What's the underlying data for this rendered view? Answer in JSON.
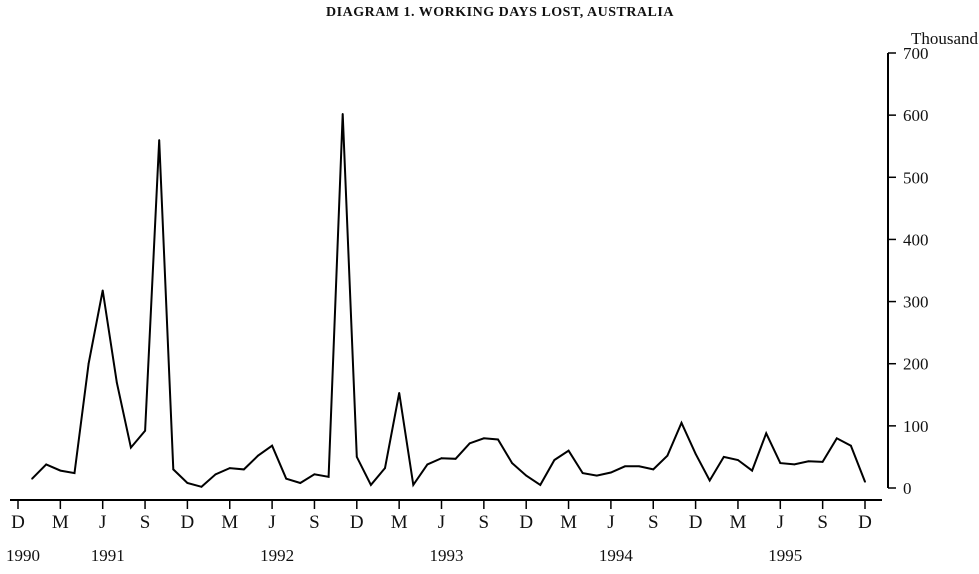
{
  "chart_data": {
    "type": "line",
    "title": "DIAGRAM 1. WORKING DAYS LOST, AUSTRALIA",
    "y_unit": "Thousand",
    "y_axis_side": "right",
    "ylim": [
      0,
      700
    ],
    "y_ticks": [
      0,
      100,
      200,
      300,
      400,
      500,
      600,
      700
    ],
    "grid": false,
    "x_tick_labels": [
      "D",
      "M",
      "J",
      "S",
      "D",
      "M",
      "J",
      "S",
      "D",
      "M",
      "J",
      "S",
      "D",
      "M",
      "J",
      "S",
      "D",
      "M",
      "J",
      "S",
      "D"
    ],
    "x_year_labels": [
      {
        "label": "1990",
        "at_tick": 0
      },
      {
        "label": "1991",
        "at_tick": 2
      },
      {
        "label": "1992",
        "at_tick": 6
      },
      {
        "label": "1993",
        "at_tick": 10
      },
      {
        "label": "1994",
        "at_tick": 14
      },
      {
        "label": "1995",
        "at_tick": 18
      }
    ],
    "x_start": "1990-12",
    "x_end": "1995-12",
    "series": [
      {
        "color": "#000000",
        "x": [
          "1991-01",
          "1991-02",
          "1991-03",
          "1991-04",
          "1991-05",
          "1991-06",
          "1991-07",
          "1991-08",
          "1991-09",
          "1991-10",
          "1991-11",
          "1991-12",
          "1992-01",
          "1992-02",
          "1992-03",
          "1992-04",
          "1992-05",
          "1992-06",
          "1992-07",
          "1992-08",
          "1992-09",
          "1992-10",
          "1992-11",
          "1992-12",
          "1993-01",
          "1993-02",
          "1993-03",
          "1993-04",
          "1993-05",
          "1993-06",
          "1993-07",
          "1993-08",
          "1993-09",
          "1993-10",
          "1993-11",
          "1993-12",
          "1994-01",
          "1994-02",
          "1994-03",
          "1994-04",
          "1994-05",
          "1994-06",
          "1994-07",
          "1994-08",
          "1994-09",
          "1994-10",
          "1994-11",
          "1994-12",
          "1995-01",
          "1995-02",
          "1995-03",
          "1995-04",
          "1995-05",
          "1995-06",
          "1995-07",
          "1995-08",
          "1995-09",
          "1995-10",
          "1995-11",
          "1995-12"
        ],
        "values": [
          15,
          38,
          28,
          24,
          200,
          318,
          170,
          65,
          92,
          560,
          30,
          8,
          2,
          22,
          32,
          30,
          52,
          68,
          15,
          8,
          22,
          18,
          602,
          50,
          5,
          32,
          153,
          5,
          38,
          48,
          47,
          72,
          80,
          78,
          40,
          20,
          5,
          45,
          60,
          24,
          20,
          25,
          35,
          35,
          30,
          52,
          105,
          55,
          12,
          50,
          45,
          28,
          88,
          40,
          38,
          43,
          42,
          80,
          68,
          10
        ]
      }
    ]
  }
}
